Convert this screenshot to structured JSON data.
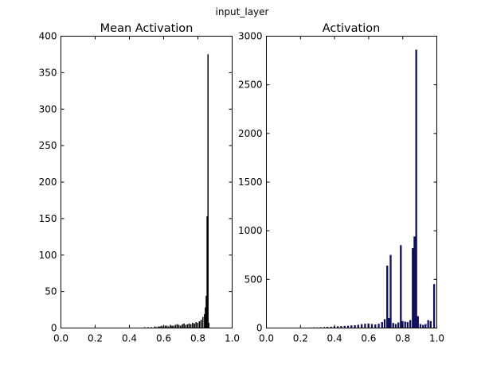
{
  "figure": {
    "suptitle": "input_layer",
    "background": "#ffffff"
  },
  "chart_data": [
    {
      "type": "bar",
      "title": "Mean Activation",
      "xlabel": "",
      "ylabel": "",
      "xlim": [
        0.0,
        1.0
      ],
      "ylim": [
        0,
        400
      ],
      "xticks": [
        "0.0",
        "0.2",
        "0.4",
        "0.6",
        "0.8",
        "1.0"
      ],
      "yticks": [
        "0",
        "50",
        "100",
        "150",
        "200",
        "250",
        "300",
        "350",
        "400"
      ],
      "bar_color": "#000000",
      "bin_width": 0.0077,
      "bins": [
        [
          0.49,
          1
        ],
        [
          0.51,
          1
        ],
        [
          0.53,
          1
        ],
        [
          0.55,
          2
        ],
        [
          0.56,
          1
        ],
        [
          0.57,
          2
        ],
        [
          0.58,
          2
        ],
        [
          0.59,
          3
        ],
        [
          0.6,
          2
        ],
        [
          0.61,
          3
        ],
        [
          0.62,
          3
        ],
        [
          0.63,
          2
        ],
        [
          0.64,
          4
        ],
        [
          0.65,
          3
        ],
        [
          0.66,
          3
        ],
        [
          0.67,
          4
        ],
        [
          0.68,
          5
        ],
        [
          0.69,
          4
        ],
        [
          0.7,
          3
        ],
        [
          0.71,
          5
        ],
        [
          0.72,
          6
        ],
        [
          0.73,
          4
        ],
        [
          0.74,
          5
        ],
        [
          0.75,
          6
        ],
        [
          0.76,
          5
        ],
        [
          0.77,
          7
        ],
        [
          0.78,
          6
        ],
        [
          0.79,
          8
        ],
        [
          0.8,
          7
        ],
        [
          0.81,
          9
        ],
        [
          0.82,
          11
        ],
        [
          0.83,
          15
        ],
        [
          0.84,
          19
        ],
        [
          0.845,
          28
        ],
        [
          0.85,
          44
        ],
        [
          0.855,
          153
        ],
        [
          0.86,
          375
        ],
        [
          0.865,
          7
        ]
      ]
    },
    {
      "type": "bar",
      "title": "Activation",
      "xlabel": "",
      "ylabel": "",
      "xlim": [
        0.0,
        1.0
      ],
      "ylim": [
        0,
        3000
      ],
      "xticks": [
        "0.0",
        "0.2",
        "0.4",
        "0.6",
        "0.8",
        "1.0"
      ],
      "yticks": [
        "0",
        "500",
        "1000",
        "1500",
        "2000",
        "2500",
        "3000"
      ],
      "bar_color": "#0d0d73",
      "bin_width": 0.011,
      "bins": [
        [
          0.23,
          3
        ],
        [
          0.26,
          4
        ],
        [
          0.28,
          5
        ],
        [
          0.3,
          5
        ],
        [
          0.32,
          6
        ],
        [
          0.34,
          8
        ],
        [
          0.36,
          10
        ],
        [
          0.38,
          12
        ],
        [
          0.4,
          14
        ],
        [
          0.42,
          16
        ],
        [
          0.44,
          18
        ],
        [
          0.46,
          20
        ],
        [
          0.48,
          22
        ],
        [
          0.5,
          25
        ],
        [
          0.52,
          28
        ],
        [
          0.54,
          32
        ],
        [
          0.56,
          38
        ],
        [
          0.58,
          42
        ],
        [
          0.6,
          45
        ],
        [
          0.62,
          40
        ],
        [
          0.64,
          35
        ],
        [
          0.66,
          42
        ],
        [
          0.68,
          60
        ],
        [
          0.695,
          90
        ],
        [
          0.71,
          640
        ],
        [
          0.72,
          100
        ],
        [
          0.73,
          750
        ],
        [
          0.745,
          50
        ],
        [
          0.76,
          40
        ],
        [
          0.775,
          55
        ],
        [
          0.79,
          850
        ],
        [
          0.8,
          70
        ],
        [
          0.815,
          65
        ],
        [
          0.83,
          60
        ],
        [
          0.845,
          80
        ],
        [
          0.86,
          820
        ],
        [
          0.87,
          940
        ],
        [
          0.88,
          2860
        ],
        [
          0.89,
          120
        ],
        [
          0.905,
          40
        ],
        [
          0.92,
          30
        ],
        [
          0.935,
          40
        ],
        [
          0.95,
          80
        ],
        [
          0.965,
          70
        ],
        [
          0.985,
          450
        ]
      ]
    }
  ]
}
